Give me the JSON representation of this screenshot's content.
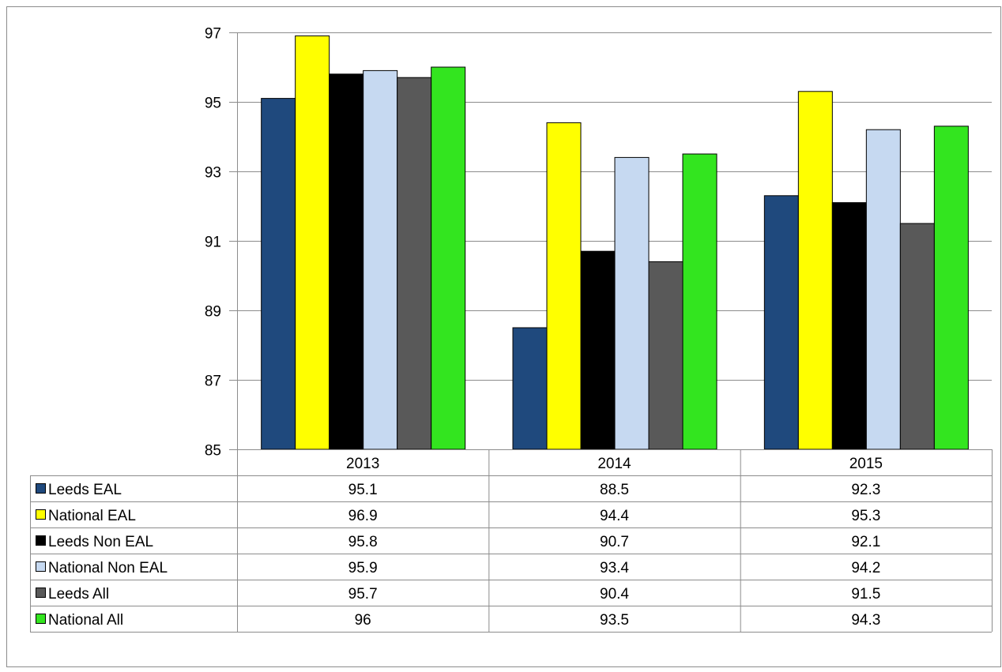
{
  "chart_data": {
    "type": "bar",
    "title": "",
    "xlabel": "",
    "ylabel": "",
    "ylim": [
      85,
      97
    ],
    "yticks": [
      85,
      87,
      89,
      91,
      93,
      95,
      97
    ],
    "grid": true,
    "legend_placement": "data-table-below",
    "categories": [
      "2013",
      "2014",
      "2015"
    ],
    "series": [
      {
        "name": "Leeds EAL",
        "color": "#1F497D",
        "values": [
          95.1,
          88.5,
          92.3
        ],
        "labels": [
          "95.1",
          "88.5",
          "92.3"
        ]
      },
      {
        "name": "National EAL",
        "color": "#FFFF00",
        "values": [
          96.9,
          94.4,
          95.3
        ],
        "labels": [
          "96.9",
          "94.4",
          "95.3"
        ]
      },
      {
        "name": "Leeds Non EAL",
        "color": "#000000",
        "values": [
          95.8,
          90.7,
          92.1
        ],
        "labels": [
          "95.8",
          "90.7",
          "92.1"
        ]
      },
      {
        "name": "National Non EAL",
        "color": "#C6D9F1",
        "values": [
          95.9,
          93.4,
          94.2
        ],
        "labels": [
          "95.9",
          "93.4",
          "94.2"
        ]
      },
      {
        "name": "Leeds All",
        "color": "#595959",
        "values": [
          95.7,
          90.4,
          91.5
        ],
        "labels": [
          "95.7",
          "90.4",
          "91.5"
        ]
      },
      {
        "name": "National All",
        "color": "#33E51F",
        "values": [
          96,
          93.5,
          94.3
        ],
        "labels": [
          "96",
          "93.5",
          "94.3"
        ]
      }
    ]
  }
}
